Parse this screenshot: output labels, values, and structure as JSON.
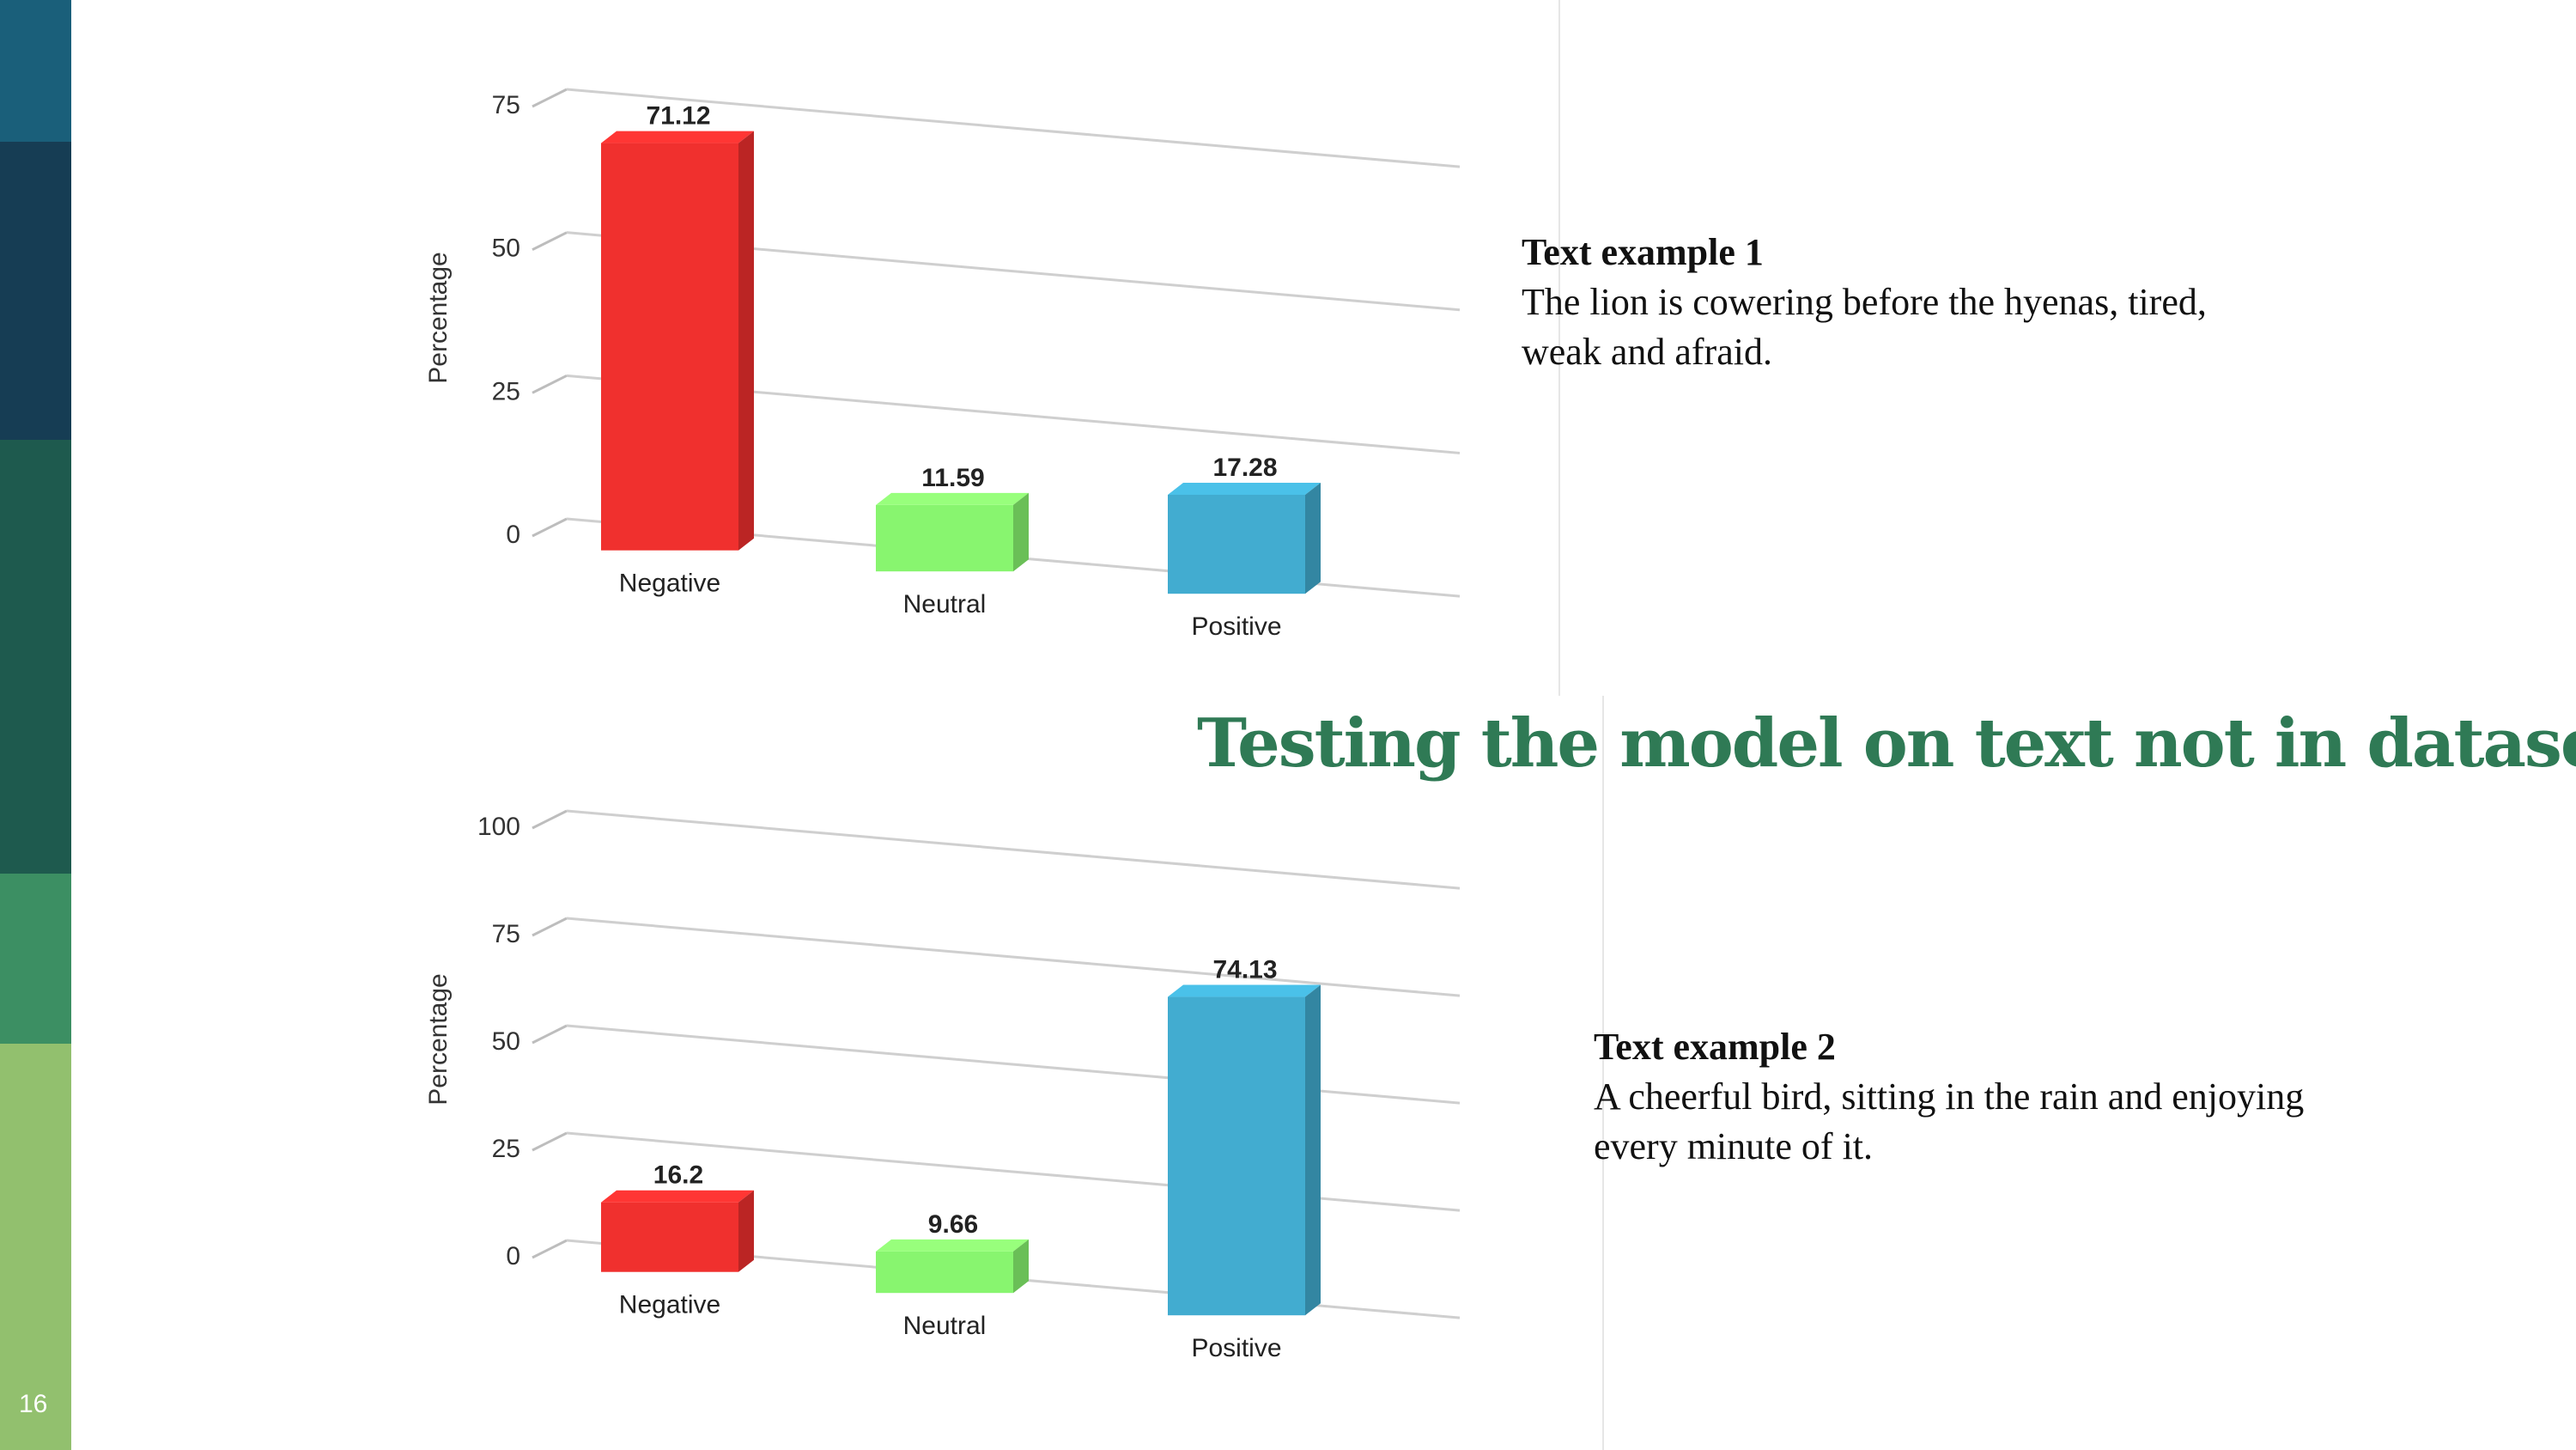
{
  "slide": {
    "title": "Testing the model on text not in dataset",
    "number": "16",
    "colors": {
      "title": "#2f7a55",
      "sidebar": [
        "#1a5f7a",
        "#163d54",
        "#1e5a4e",
        "#3c8f63",
        "#92c06e"
      ]
    }
  },
  "examples": [
    {
      "heading": "Text example 1",
      "text": "The lion is cowering before the hyenas, tired, weak and afraid."
    },
    {
      "heading": "Text example 2",
      "text": "A cheerful bird, sitting in the rain and enjoying every minute of it."
    }
  ],
  "chart_data": [
    {
      "type": "bar",
      "categories": [
        "Negative",
        "Neutral",
        "Positive"
      ],
      "values": [
        71.12,
        11.59,
        17.28
      ],
      "value_labels": [
        "71.12",
        "11.59",
        "17.28"
      ],
      "colors": [
        "#f0302e",
        "#88f56f",
        "#42acd0"
      ],
      "ylabel": "Percentage",
      "yticks": [
        0,
        25,
        50,
        75
      ],
      "ytick_labels": [
        "0",
        "25",
        "50",
        "75"
      ],
      "ylim": [
        0,
        75
      ],
      "grid": true,
      "style": "3d-perspective"
    },
    {
      "type": "bar",
      "categories": [
        "Negative",
        "Neutral",
        "Positive"
      ],
      "values": [
        16.2,
        9.66,
        74.13
      ],
      "value_labels": [
        "16.2",
        "9.66",
        "74.13"
      ],
      "colors": [
        "#f0302e",
        "#88f56f",
        "#42acd0"
      ],
      "ylabel": "Percentage",
      "yticks": [
        0,
        25,
        50,
        75,
        100
      ],
      "ytick_labels": [
        "0",
        "25",
        "50",
        "75",
        "100"
      ],
      "ylim": [
        0,
        100
      ],
      "grid": true,
      "style": "3d-perspective"
    }
  ]
}
